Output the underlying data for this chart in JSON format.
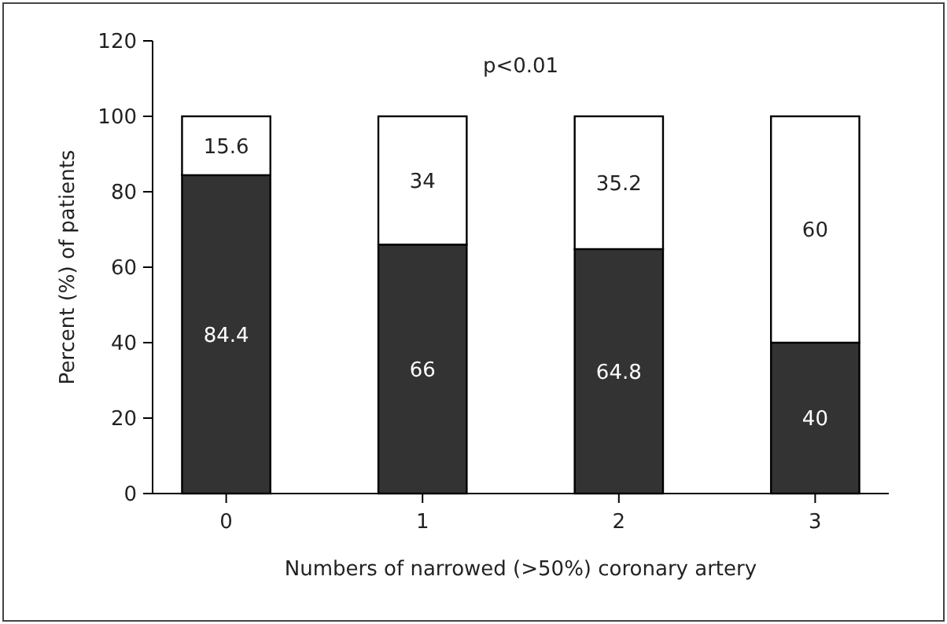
{
  "chart_data": {
    "type": "bar",
    "stacked": true,
    "categories": [
      "0",
      "1",
      "2",
      "3"
    ],
    "series": [
      {
        "color": "#333333",
        "values": [
          84.4,
          66,
          64.8,
          40
        ]
      },
      {
        "color": "#ffffff",
        "values": [
          15.6,
          34,
          35.2,
          60
        ]
      }
    ],
    "xlabel": "Numbers of narrowed (>50%) coronary artery",
    "ylabel": "Percent (%) of patients",
    "ylim": [
      0,
      120
    ],
    "yticks": [
      0,
      20,
      40,
      60,
      80,
      100,
      120
    ],
    "data_labels": true,
    "grid": false,
    "annotations": [
      "p<0.01"
    ]
  }
}
